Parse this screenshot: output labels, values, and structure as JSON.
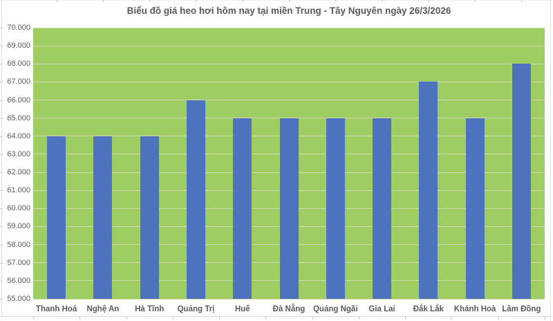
{
  "chart_data": {
    "type": "bar",
    "title": "Biểu đồ giá heo hơi hôm nay tại miền Trung - Tây Nguyên ngày 26/3/2026",
    "categories": [
      "Thanh Hoá",
      "Nghệ An",
      "Hà Tĩnh",
      "Quảng Trị",
      "Huế",
      "Đà Nẵng",
      "Quảng Ngãi",
      "Gia Lai",
      "Đắk Lắk",
      "Khánh Hoà",
      "Lâm Đồng"
    ],
    "values": [
      64000,
      64000,
      64000,
      66000,
      65000,
      65000,
      65000,
      65000,
      67000,
      65000,
      68000
    ],
    "xlabel": "",
    "ylabel": "",
    "ylim": [
      55000,
      70000
    ],
    "ytick_step": 1000,
    "ytick_labels": [
      "70.000",
      "69.000",
      "68.000",
      "67.000",
      "66.000",
      "65.000",
      "64.000",
      "63.000",
      "62.000",
      "61.000",
      "60.000",
      "59.000",
      "58.000",
      "57.000",
      "56.000",
      "55.000"
    ],
    "grid": true,
    "legend": false,
    "colors": {
      "background": "#ffffff",
      "plot_background": "#9ecd63",
      "bar": "#4e73be",
      "gridline": "#cfd9b2",
      "axis_line": "#d9d9d9",
      "tick": "#c6c6c6",
      "text": "#595959"
    }
  }
}
